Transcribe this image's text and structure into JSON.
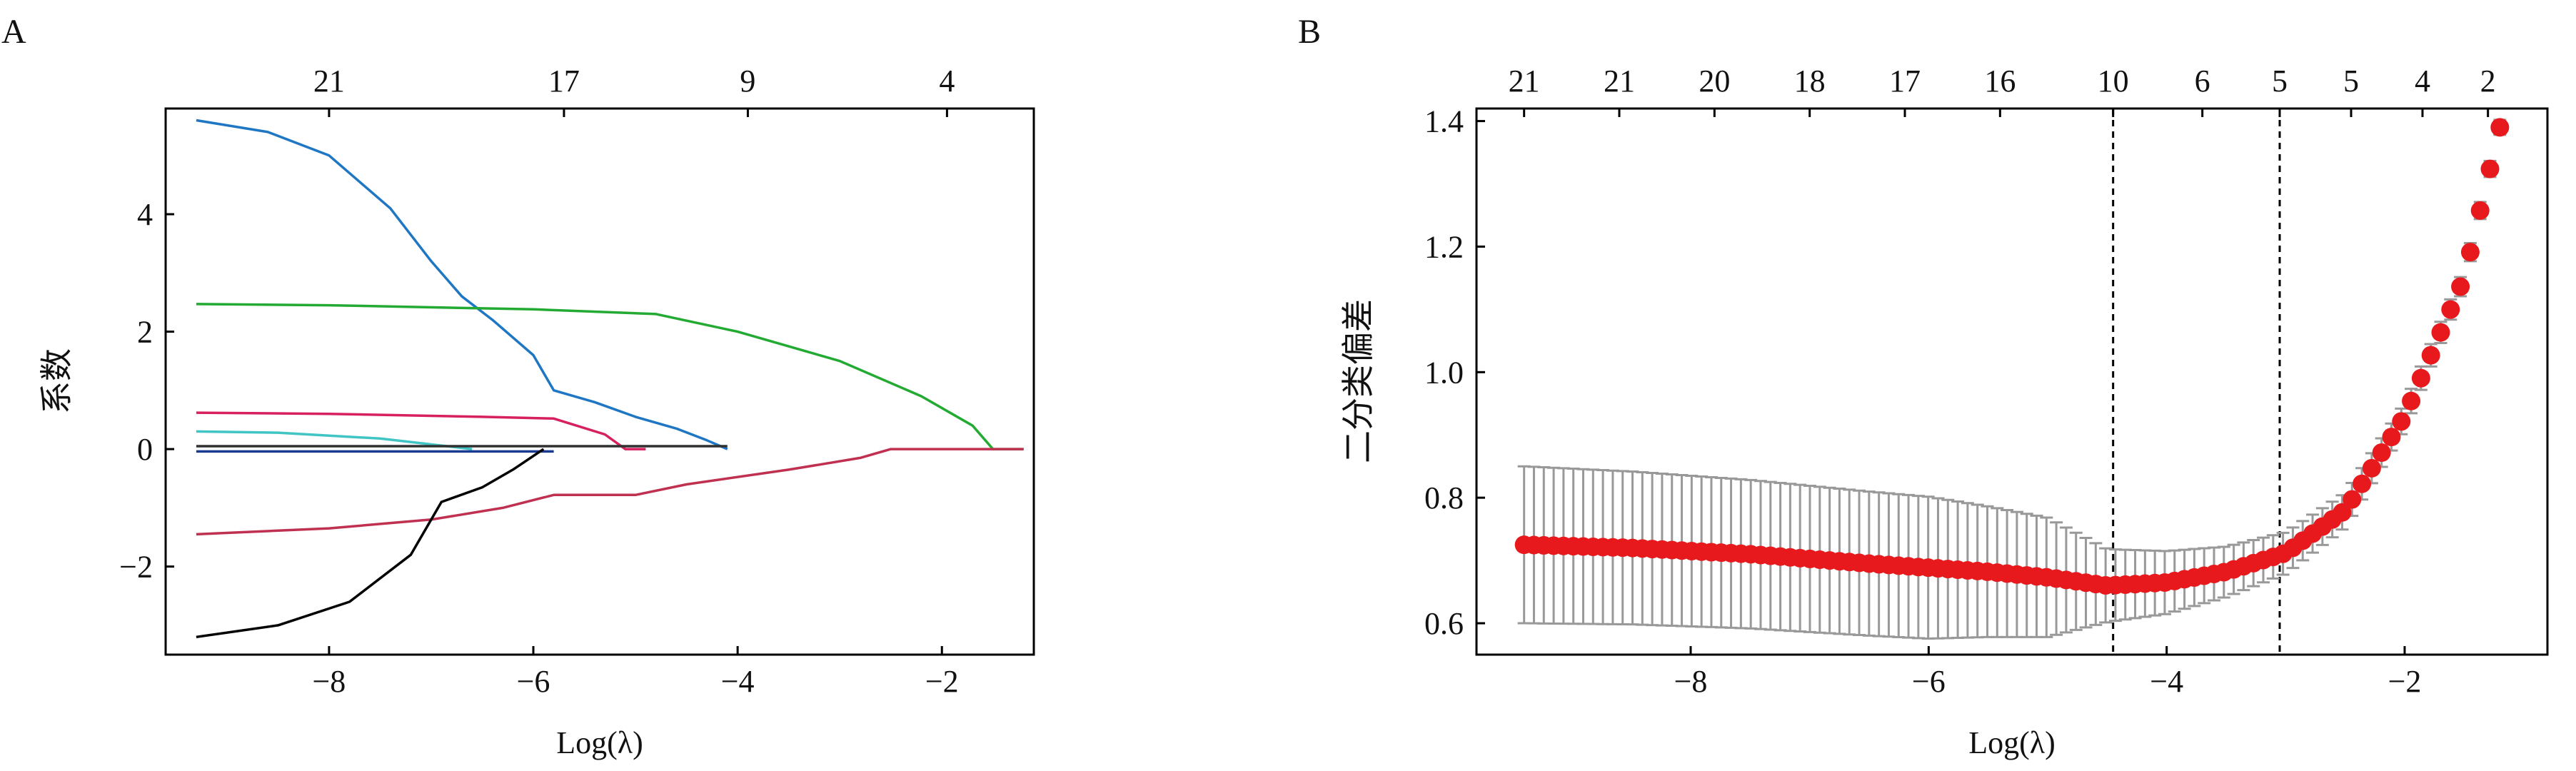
{
  "chart_data": [
    {
      "panel_label": "A",
      "type": "line",
      "xlabel": "Log(λ)",
      "ylabel": "系数",
      "xlim": [
        -9.6,
        -1.1
      ],
      "ylim": [
        -3.5,
        5.8
      ],
      "x_ticks": [
        -8,
        -6,
        -4,
        -2
      ],
      "x_tick_labels": [
        "−8",
        "−6",
        "−4",
        "−2"
      ],
      "y_ticks": [
        -2,
        0,
        2,
        4
      ],
      "y_tick_labels": [
        "−2",
        "0",
        "2",
        "4"
      ],
      "top_ticks": [
        -8.0,
        -5.7,
        -3.9,
        -1.95
      ],
      "top_tick_labels": [
        "21",
        "17",
        "9",
        "4"
      ],
      "grid": false,
      "series": [
        {
          "color": "#1f77c4",
          "x": [
            -9.3,
            -8.6,
            -8.0,
            -7.4,
            -7.0,
            -6.7,
            -6.4,
            -6.0,
            -5.8,
            -5.4,
            -5.0,
            -4.6,
            -4.3,
            -4.1
          ],
          "y": [
            5.6,
            5.4,
            5.0,
            4.1,
            3.2,
            2.6,
            2.2,
            1.6,
            1.0,
            0.8,
            0.55,
            0.35,
            0.15,
            0.0
          ]
        },
        {
          "color": "#22aa33",
          "x": [
            -9.3,
            -8.0,
            -6.0,
            -4.8,
            -4.0,
            -3.0,
            -2.2,
            -1.7,
            -1.5,
            -1.2
          ],
          "y": [
            2.47,
            2.45,
            2.38,
            2.3,
            2.0,
            1.5,
            0.9,
            0.4,
            0.0,
            0.0
          ]
        },
        {
          "color": "#d62060",
          "x": [
            -9.3,
            -8.0,
            -6.5,
            -5.8,
            -5.3,
            -5.1,
            -4.9
          ],
          "y": [
            0.62,
            0.6,
            0.55,
            0.52,
            0.25,
            0.0,
            0.0
          ]
        },
        {
          "color": "#40c4c4",
          "x": [
            -9.3,
            -8.5,
            -7.5,
            -7.0,
            -6.6
          ],
          "y": [
            0.3,
            0.28,
            0.18,
            0.08,
            0.0
          ]
        },
        {
          "color": "#303030",
          "x": [
            -9.3,
            -4.1
          ],
          "y": [
            0.05,
            0.05
          ]
        },
        {
          "color": "#1a3a90",
          "x": [
            -9.3,
            -5.8
          ],
          "y": [
            -0.04,
            -0.04
          ]
        },
        {
          "color": "#c03050",
          "x": [
            -9.3,
            -8.0,
            -7.0,
            -6.3,
            -5.8,
            -5.0,
            -4.5,
            -3.5,
            -2.8,
            -2.5,
            -1.2
          ],
          "y": [
            -1.45,
            -1.35,
            -1.2,
            -1.0,
            -0.78,
            -0.78,
            -0.6,
            -0.35,
            -0.15,
            0.0,
            0.0
          ]
        },
        {
          "color": "#000000",
          "x": [
            -9.3,
            -8.5,
            -7.8,
            -7.2,
            -6.9,
            -6.5,
            -6.2,
            -5.9
          ],
          "y": [
            -3.2,
            -3.0,
            -2.6,
            -1.8,
            -0.9,
            -0.65,
            -0.35,
            0.0
          ]
        }
      ]
    },
    {
      "panel_label": "B",
      "type": "scatter",
      "xlabel": "Log(λ)",
      "ylabel": "二分类偏差",
      "xlim": [
        -9.8,
        -0.8
      ],
      "ylim": [
        0.55,
        1.42
      ],
      "x_ticks": [
        -8,
        -6,
        -4,
        -2
      ],
      "x_tick_labels": [
        "−8",
        "−6",
        "−4",
        "−2"
      ],
      "y_ticks": [
        0.6,
        0.8,
        1.0,
        1.2,
        1.4
      ],
      "y_tick_labels": [
        "0.6",
        "0.8",
        "1.0",
        "1.2",
        "1.4"
      ],
      "top_ticks": [
        -9.4,
        -8.6,
        -7.8,
        -7.0,
        -6.2,
        -5.4,
        -4.45,
        -3.7,
        -3.05,
        -2.45,
        -1.85,
        -1.3
      ],
      "top_tick_labels": [
        "21",
        "21",
        "20",
        "18",
        "17",
        "16",
        "10",
        "6",
        "5",
        "5",
        "4",
        "2"
      ],
      "vlines": [
        -4.45,
        -3.05
      ],
      "grid": false,
      "points": {
        "color": "#e8191c",
        "errorbar_color": "#999999",
        "mean_curve": {
          "x": [
            -9.4,
            -8.5,
            -7.5,
            -6.5,
            -5.5,
            -5.0,
            -4.5,
            -4.0,
            -3.5,
            -3.0,
            -2.5,
            -2.0,
            -1.5,
            -1.2
          ],
          "y": [
            0.725,
            0.72,
            0.71,
            0.695,
            0.682,
            0.673,
            0.66,
            0.665,
            0.682,
            0.712,
            0.78,
            0.93,
            1.15,
            1.39
          ]
        },
        "halfwidth_curve": {
          "x": [
            -9.4,
            -8.0,
            -6.0,
            -5.0,
            -4.5,
            -4.0,
            -3.5,
            -3.0,
            -2.5,
            -2.0,
            -1.5,
            -1.2
          ],
          "y": [
            0.125,
            0.12,
            0.113,
            0.095,
            0.058,
            0.05,
            0.04,
            0.033,
            0.027,
            0.02,
            0.015,
            0.012
          ]
        }
      }
    }
  ]
}
